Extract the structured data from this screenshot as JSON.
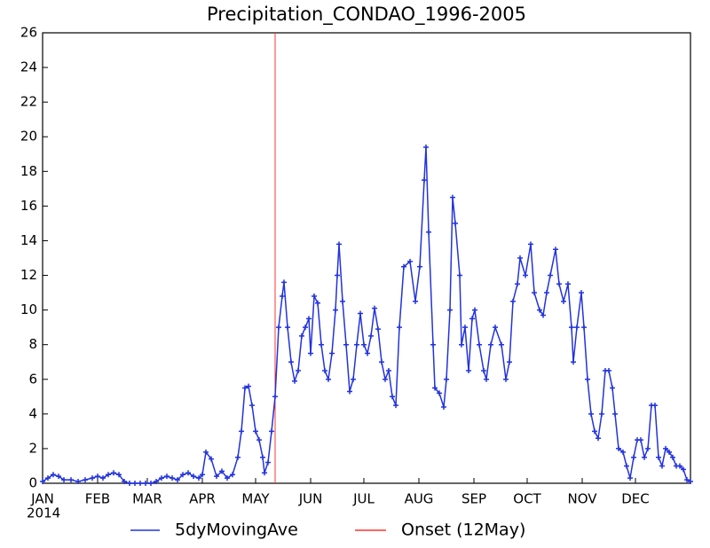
{
  "chart_data": {
    "type": "line",
    "title": "Precipitation_CONDAO_1996-2005",
    "year_label": "2014",
    "xlim": [
      1,
      366
    ],
    "xticks": [
      {
        "value": 1,
        "label": "JAN"
      },
      {
        "value": 32,
        "label": "FEB"
      },
      {
        "value": 60,
        "label": "MAR"
      },
      {
        "value": 91,
        "label": "APR"
      },
      {
        "value": 121,
        "label": "MAY"
      },
      {
        "value": 152,
        "label": "JUN"
      },
      {
        "value": 182,
        "label": "JUL"
      },
      {
        "value": 213,
        "label": "AUG"
      },
      {
        "value": 244,
        "label": "SEP"
      },
      {
        "value": 274,
        "label": "OCT"
      },
      {
        "value": 305,
        "label": "NOV"
      },
      {
        "value": 335,
        "label": "DEC"
      }
    ],
    "ylim": [
      0,
      26
    ],
    "yticks": [
      0,
      2,
      4,
      6,
      8,
      10,
      12,
      14,
      16,
      18,
      20,
      22,
      24,
      26
    ],
    "x": [
      1,
      4,
      7,
      10,
      13,
      17,
      21,
      25,
      29,
      32,
      35,
      38,
      41,
      44,
      47,
      50,
      53,
      56,
      59,
      62,
      65,
      68,
      71,
      74,
      77,
      80,
      83,
      86,
      89,
      91,
      93,
      96,
      99,
      102,
      105,
      108,
      111,
      113,
      115,
      117,
      119,
      121,
      123,
      125,
      126,
      128,
      130,
      132,
      134,
      136,
      137,
      139,
      141,
      143,
      145,
      147,
      149,
      151,
      152,
      154,
      156,
      158,
      160,
      162,
      164,
      166,
      167,
      168,
      170,
      172,
      174,
      176,
      178,
      180,
      182,
      184,
      186,
      188,
      190,
      192,
      194,
      196,
      198,
      200,
      202,
      204.5,
      208,
      211,
      213.5,
      216,
      217,
      218.5,
      221,
      222,
      224.5,
      227,
      228.5,
      230.5,
      232,
      233.5,
      236,
      237,
      239,
      241,
      243,
      244.5,
      247,
      249.5,
      251,
      253.5,
      256,
      259.5,
      262,
      264,
      266,
      268.5,
      270,
      273,
      276,
      278,
      281,
      283,
      285,
      287,
      290,
      292,
      294.5,
      297,
      299,
      300,
      302,
      304.5,
      306,
      308,
      310,
      312,
      314,
      316,
      318,
      320,
      322,
      323.5,
      325.5,
      328,
      330,
      332,
      334,
      336,
      338,
      340,
      342,
      344,
      346,
      348,
      350,
      352,
      354,
      356,
      358,
      360,
      362,
      364,
      366
    ],
    "series": [
      {
        "name": "5dyMovingAve",
        "color": "#2233dd",
        "values": [
          0.1,
          0.3,
          0.5,
          0.4,
          0.2,
          0.2,
          0.1,
          0.2,
          0.3,
          0.4,
          0.3,
          0.5,
          0.6,
          0.5,
          0.1,
          0,
          0,
          0,
          0,
          0,
          0.1,
          0.3,
          0.4,
          0.3,
          0.2,
          0.5,
          0.6,
          0.4,
          0.3,
          0.5,
          1.8,
          1.4,
          0.4,
          0.7,
          0.3,
          0.5,
          1.5,
          3,
          5.5,
          5.6,
          4.5,
          3,
          2.5,
          1.5,
          0.6,
          1.2,
          3,
          5,
          9,
          10.8,
          11.6,
          9,
          7,
          5.9,
          6.5,
          8.5,
          9,
          9.5,
          7.5,
          10.8,
          10.4,
          8,
          6.5,
          6,
          7.5,
          10,
          12,
          13.8,
          10.5,
          8,
          5.3,
          6,
          8,
          9.8,
          8,
          7.5,
          8.5,
          10.1,
          8.9,
          7,
          6,
          6.5,
          5,
          4.5,
          9,
          12.5,
          12.8,
          10.5,
          12.5,
          17.5,
          19.4,
          14.5,
          8,
          5.5,
          5.2,
          4.4,
          6,
          10,
          16.5,
          15,
          12,
          8,
          9,
          6.5,
          9.5,
          10,
          8,
          6.5,
          6,
          8,
          9,
          8,
          6,
          7,
          10.5,
          11.5,
          13,
          12,
          13.8,
          11,
          10,
          9.7,
          11,
          12,
          13.5,
          11.5,
          10.5,
          11.5,
          9,
          7,
          9,
          11,
          9,
          6,
          4,
          3,
          2.6,
          4,
          6.5,
          6.5,
          5.5,
          4,
          2,
          1.8,
          1,
          0.3,
          1.5,
          2.5,
          2.5,
          1.5,
          2,
          4.5,
          4.5,
          1.5,
          1,
          2,
          1.8,
          1.5,
          1,
          1,
          0.8,
          0.2,
          0.1
        ]
      }
    ],
    "onset": {
      "name": "Onset (12May)",
      "color": "#ff3333",
      "x": 132
    }
  }
}
